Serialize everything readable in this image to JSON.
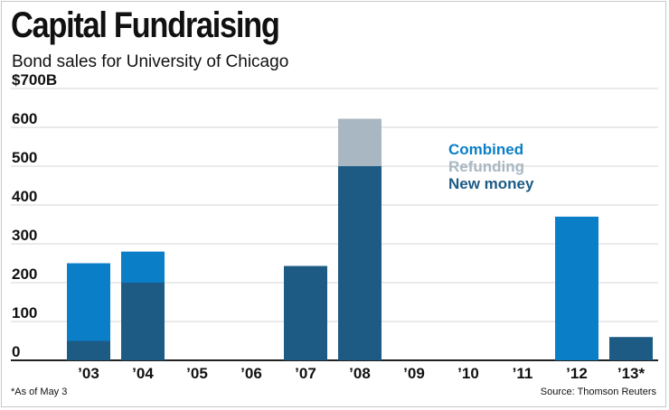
{
  "title": "Capital Fundraising",
  "subtitle": "Bond sales for University of Chicago",
  "footnote": "*As of May 3",
  "source": "Source: Thomson Reuters",
  "colors": {
    "combined": "#0a7fc8",
    "refunding": "#a8b7c2",
    "new_money": "#1d5b85",
    "grid": "#d4d4d4",
    "axis": "#222222"
  },
  "chart_data": {
    "type": "bar",
    "stacked": true,
    "title": "Capital Fundraising",
    "subtitle": "Bond sales for University of Chicago",
    "categories": [
      "’03",
      "’04",
      "’05",
      "’06",
      "’07",
      "’08",
      "’09",
      "’10",
      "’11",
      "’12",
      "’13*"
    ],
    "series": [
      {
        "name": "New money",
        "color": "#1d5b85",
        "values": [
          50,
          200,
          0,
          0,
          243,
          500,
          0,
          0,
          0,
          0,
          60
        ]
      },
      {
        "name": "Combined",
        "color": "#0a7fc8",
        "values": [
          200,
          80,
          0,
          0,
          0,
          0,
          0,
          0,
          0,
          370,
          0
        ]
      },
      {
        "name": "Refunding",
        "color": "#a8b7c2",
        "values": [
          0,
          0,
          0,
          0,
          0,
          122,
          0,
          0,
          0,
          0,
          0
        ]
      }
    ],
    "legend_order": [
      "Combined",
      "Refunding",
      "New money"
    ],
    "legend_position": "top-right",
    "ylim": [
      0,
      700
    ],
    "yticks": [
      0,
      100,
      200,
      300,
      400,
      500,
      600,
      700
    ],
    "ytick_labels": [
      "0",
      "100",
      "200",
      "300",
      "400",
      "500",
      "600",
      "$700B"
    ],
    "grid": true,
    "xlabel": "",
    "ylabel": ""
  }
}
